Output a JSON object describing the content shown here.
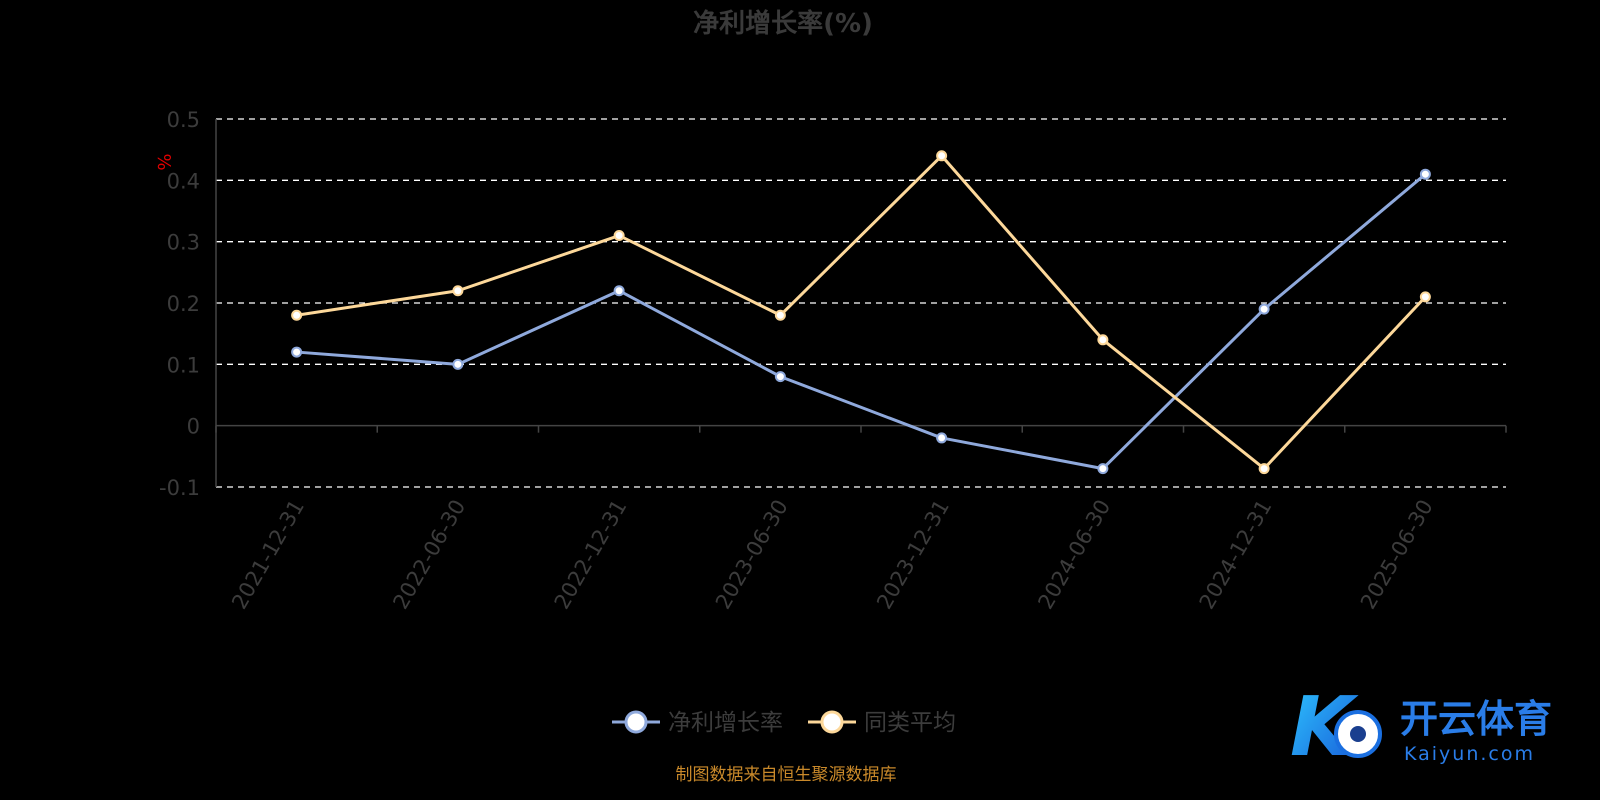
{
  "chart_data": {
    "type": "line",
    "title": "净利增长率(%)",
    "ylabel": "%",
    "xlabel": "",
    "categories": [
      "2021-12-31",
      "2022-06-30",
      "2022-12-31",
      "2023-06-30",
      "2023-12-31",
      "2024-06-30",
      "2024-12-31",
      "2025-06-30"
    ],
    "ylim": [
      -0.1,
      0.5
    ],
    "yticks": [
      0.5,
      0.4,
      0.3,
      0.2,
      0.1,
      0,
      -0.1
    ],
    "ytick_labels": [
      "0.5",
      "0.4",
      "0.3",
      "0.2",
      "0.1",
      "0",
      "-0.1"
    ],
    "grid": true,
    "legend_position": "bottom-center",
    "series": [
      {
        "name": "净利增长率",
        "color": "#8fa9dc",
        "values": [
          0.12,
          0.1,
          0.22,
          0.08,
          -0.02,
          -0.07,
          0.19,
          0.41
        ]
      },
      {
        "name": "同类平均",
        "color": "#fdd89a",
        "values": [
          0.18,
          0.22,
          0.31,
          0.18,
          0.44,
          0.14,
          -0.07,
          0.21
        ]
      }
    ]
  },
  "source_note": "制图数据来自恒生聚源数据库",
  "watermark": {
    "cn": "开云体育",
    "en": "Kaiyun.com",
    "mark": "K"
  },
  "colors": {
    "background": "#000000",
    "grid": "#ffffff",
    "axis": "#444444",
    "accent": "#1e90ff"
  }
}
